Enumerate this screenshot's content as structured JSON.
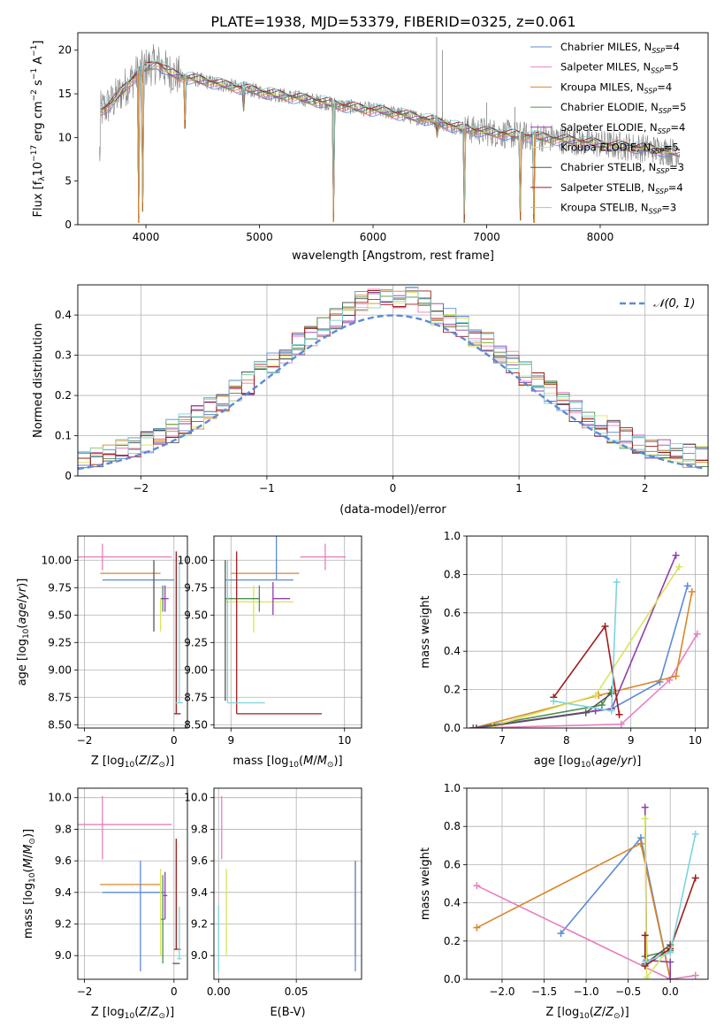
{
  "figure": {
    "title": "PLATE=1938, MJD=53379, FIBERID=0325, z=0.061"
  },
  "colors": {
    "Chabrier MILES": "#5b8bd8",
    "Salpeter MILES": "#e87fbf",
    "Kroupa MILES": "#d9862a",
    "Chabrier ELODIE": "#4f8f4f",
    "Salpeter ELODIE": "#8e3fae",
    "Kroupa ELODIE": "#d9e55a",
    "Chabrier STELIB": "#555555",
    "Salpeter STELIB": "#a01c1c",
    "Kroupa STELIB": "#7fd3dc",
    "data": "#808080"
  },
  "chart_data": [
    {
      "id": "spectrum",
      "type": "line",
      "title": "PLATE=1938, MJD=53379, FIBERID=0325, z=0.061",
      "xlabel": "wavelength [Angstrom, rest frame]",
      "ylabel": "Flux [f_λ 10^-17 erg cm^-2 s^-1 A^-1]",
      "xlim": [
        3400,
        8950
      ],
      "ylim": [
        0,
        22
      ],
      "xticks": [
        4000,
        5000,
        6000,
        7000,
        8000
      ],
      "yticks": [
        0,
        5,
        10,
        15,
        20
      ],
      "legend_position": "top-right",
      "legend": [
        {
          "label": "Chabrier MILES, N",
          "sub": "SSP",
          "n": "=4",
          "model": "Chabrier MILES"
        },
        {
          "label": "Salpeter MILES, N",
          "sub": "SSP",
          "n": "=5",
          "model": "Salpeter MILES"
        },
        {
          "label": "Kroupa MILES, N",
          "sub": "SSP",
          "n": "=4",
          "model": "Kroupa MILES"
        },
        {
          "label": "Chabrier ELODIE, N",
          "sub": "SSP",
          "n": "=5",
          "model": "Chabrier ELODIE"
        },
        {
          "label": "Salpeter ELODIE, N",
          "sub": "SSP",
          "n": "=4",
          "model": "Salpeter ELODIE"
        },
        {
          "label": "Kroupa ELODIE, N",
          "sub": "SSP",
          "n": "=5",
          "model": "Kroupa ELODIE"
        },
        {
          "label": "Chabrier STELIB, N",
          "sub": "SSP",
          "n": "=3",
          "model": "Chabrier STELIB"
        },
        {
          "label": "Salpeter STELIB, N",
          "sub": "SSP",
          "n": "=4",
          "model": "Salpeter STELIB"
        },
        {
          "label": "Kroupa STELIB, N",
          "sub": "SSP",
          "n": "=3",
          "model": "Kroupa STELIB"
        }
      ],
      "continuum": {
        "x": [
          3600,
          3700,
          3800,
          3900,
          4000,
          4100,
          4200,
          4300,
          4500,
          4700,
          4900,
          5100,
          5300,
          5500,
          5700,
          5900,
          6100,
          6300,
          6500,
          6700,
          6900,
          7100,
          7300,
          7500,
          7700,
          7900,
          8100,
          8300,
          8500,
          8700
        ],
        "y": [
          13,
          14,
          15.5,
          17,
          18,
          18.5,
          17.5,
          17,
          16.5,
          16,
          15.5,
          15,
          14.6,
          14.2,
          13.7,
          13.3,
          13,
          12.5,
          12,
          11.3,
          10.8,
          10.5,
          10.2,
          10,
          9.7,
          9.4,
          9.1,
          8.9,
          8.6,
          8.2
        ]
      },
      "absorption_spikes": [
        [
          3934,
          0.2
        ],
        [
          3969,
          1.5
        ],
        [
          4340,
          11
        ],
        [
          4861,
          13
        ],
        [
          5650,
          0.3
        ],
        [
          6800,
          0.2
        ],
        [
          7420,
          0.2
        ],
        [
          7300,
          0.5
        ],
        [
          6563,
          10
        ]
      ]
    },
    {
      "id": "residuals",
      "type": "histogram",
      "xlabel": "(data-model)/error",
      "ylabel": "Normed distribution",
      "xlim": [
        -2.5,
        2.5
      ],
      "ylim": [
        0,
        0.475
      ],
      "xticks": [
        -2,
        -1,
        0,
        1,
        2
      ],
      "yticks": [
        0,
        0.1,
        0.2,
        0.3,
        0.4
      ],
      "grid": true,
      "bin_width": 0.1,
      "reference_curve": {
        "name": "𝒩(0, 1)",
        "mean": 0,
        "sigma": 1,
        "color": "#5b8bd8"
      },
      "legend_position": "top-right"
    },
    {
      "id": "age-vs-z",
      "type": "errorbar",
      "xlabel": "Z [log10(Z/Z⊙)]",
      "ylabel": "age [log10(age/yr)]",
      "xlim": [
        -2.15,
        0.3
      ],
      "ylim": [
        8.47,
        10.22
      ],
      "xticks": [
        -2,
        0
      ],
      "yticks": [
        8.5,
        8.75,
        9.0,
        9.25,
        9.5,
        9.75,
        10.0
      ],
      "points": [
        {
          "model": "Salpeter MILES",
          "x": -1.6,
          "y": 10.03,
          "xerr": [
            0.55,
            1.55
          ],
          "yerr": [
            0.12,
            0.12
          ]
        },
        {
          "model": "Kroupa MILES",
          "x": -0.55,
          "y": 9.88,
          "xerr": [
            1.1,
            0.25
          ],
          "yerr": [
            0.0,
            0.0
          ]
        },
        {
          "model": "Chabrier MILES",
          "x": -0.75,
          "y": 9.82,
          "xerr": [
            0.85,
            0.75
          ],
          "yerr": [
            0.0,
            0.0
          ]
        },
        {
          "model": "Chabrier ELODIE",
          "x": -0.25,
          "y": 9.65,
          "xerr": [
            0.05,
            0.05
          ],
          "yerr": [
            0.12,
            0.12
          ]
        },
        {
          "model": "Salpeter ELODIE",
          "x": -0.2,
          "y": 9.65,
          "xerr": [
            0.08,
            0.08
          ],
          "yerr": [
            0.12,
            0.12
          ]
        },
        {
          "model": "Kroupa ELODIE",
          "x": -0.3,
          "y": 9.5,
          "xerr": [
            0.0,
            0.0
          ],
          "yerr": [
            0.15,
            0.15
          ]
        },
        {
          "model": "Salpeter STELIB",
          "x": 0.05,
          "y": 8.6,
          "xerr": [
            0.05,
            0.1
          ],
          "yerr": [
            0.0,
            1.48
          ]
        },
        {
          "model": "Kroupa STELIB",
          "x": 0.12,
          "y": 8.7,
          "xerr": [
            0.08,
            0.08
          ],
          "yerr": [
            0.0,
            1.3
          ]
        },
        {
          "model": "Chabrier STELIB",
          "x": -0.45,
          "y": 9.65,
          "xerr": [
            0.0,
            0.0
          ],
          "yerr": [
            0.3,
            0.35
          ]
        }
      ]
    },
    {
      "id": "age-vs-mass",
      "type": "errorbar",
      "xlabel": "mass [log10(M/M⊙)]",
      "ylabel": "",
      "xlim": [
        8.85,
        10.15
      ],
      "ylim": [
        8.47,
        10.22
      ],
      "xticks": [
        9,
        10
      ],
      "yticks": [
        8.5,
        8.75,
        9.0,
        9.25,
        9.5,
        9.75,
        10.0
      ],
      "points": [
        {
          "model": "Salpeter MILES",
          "x": 9.83,
          "y": 10.03,
          "xerr": [
            0.22,
            0.18
          ],
          "yerr": [
            0.12,
            0.12
          ]
        },
        {
          "model": "Kroupa MILES",
          "x": 9.45,
          "y": 9.88,
          "xerr": [
            0.45,
            0.15
          ],
          "yerr": [
            0.0,
            0.0
          ]
        },
        {
          "model": "Chabrier MILES",
          "x": 9.4,
          "y": 9.82,
          "xerr": [
            0.45,
            0.15
          ],
          "yerr": [
            0.0,
            1.2
          ]
        },
        {
          "model": "Kroupa ELODIE",
          "x": 9.2,
          "y": 9.62,
          "xerr": [
            0.25,
            0.35
          ],
          "yerr": [
            0.28,
            0.15
          ]
        },
        {
          "model": "Salpeter ELODIE",
          "x": 9.37,
          "y": 9.65,
          "xerr": [
            0.0,
            0.15
          ],
          "yerr": [
            0.15,
            0.15
          ]
        },
        {
          "model": "Chabrier ELODIE",
          "x": 9.25,
          "y": 9.65,
          "xerr": [
            0.3,
            0.0
          ],
          "yerr": [
            0.12,
            0.12
          ]
        },
        {
          "model": "Salpeter STELIB",
          "x": 9.05,
          "y": 8.6,
          "xerr": [
            0.0,
            0.75
          ],
          "yerr": [
            0.0,
            1.48
          ]
        },
        {
          "model": "Kroupa STELIB",
          "x": 8.97,
          "y": 8.7,
          "xerr": [
            0.0,
            0.33
          ],
          "yerr": [
            0.0,
            1.3
          ]
        },
        {
          "model": "Chabrier STELIB",
          "x": 8.95,
          "y": 8.72,
          "xerr": [
            0.0,
            0.0
          ],
          "yerr": [
            0.0,
            1.28
          ]
        }
      ]
    },
    {
      "id": "massweight-vs-age",
      "type": "line",
      "xlabel": "age [log10(age/yr)]",
      "ylabel": "mass weight",
      "xlim": [
        6.45,
        10.2
      ],
      "ylim": [
        0,
        1.0
      ],
      "xticks": [
        7,
        8,
        9,
        10
      ],
      "yticks": [
        0.0,
        0.2,
        0.4,
        0.6,
        0.8,
        1.0
      ],
      "series": [
        {
          "model": "Chabrier MILES",
          "x": [
            6.55,
            8.7,
            9.45,
            9.88
          ],
          "y": [
            0.0,
            0.1,
            0.24,
            0.74
          ]
        },
        {
          "model": "Salpeter MILES",
          "x": [
            6.55,
            8.85,
            9.6,
            10.03
          ],
          "y": [
            0.0,
            0.02,
            0.25,
            0.49
          ]
        },
        {
          "model": "Kroupa MILES",
          "x": [
            6.55,
            8.5,
            9.7,
            9.95
          ],
          "y": [
            0.0,
            0.17,
            0.27,
            0.71
          ]
        },
        {
          "model": "Chabrier ELODIE",
          "x": [
            6.55,
            8.55,
            8.7
          ],
          "y": [
            0.0,
            0.12,
            0.2
          ]
        },
        {
          "model": "Salpeter ELODIE",
          "x": [
            6.55,
            8.45,
            8.7,
            9.7
          ],
          "y": [
            0.0,
            0.09,
            0.1,
            0.9
          ]
        },
        {
          "model": "Kroupa ELODIE",
          "x": [
            6.85,
            8.45,
            9.75
          ],
          "y": [
            0.01,
            0.17,
            0.84
          ]
        },
        {
          "model": "Chabrier STELIB",
          "x": [
            6.6,
            8.3,
            8.7
          ],
          "y": [
            0.0,
            0.08,
            0.18
          ]
        },
        {
          "model": "Salpeter STELIB",
          "x": [
            7.8,
            8.6,
            8.82
          ],
          "y": [
            0.16,
            0.53,
            0.07
          ]
        },
        {
          "model": "Kroupa STELIB",
          "x": [
            7.8,
            8.7,
            8.78
          ],
          "y": [
            0.14,
            0.09,
            0.76
          ]
        }
      ]
    },
    {
      "id": "mass-vs-z",
      "type": "errorbar",
      "xlabel": "Z [log10(Z/Z⊙)]",
      "ylabel": "mass [log10(M/M⊙)]",
      "xlim": [
        -2.15,
        0.3
      ],
      "ylim": [
        8.85,
        10.06
      ],
      "xticks": [
        -2,
        0
      ],
      "yticks": [
        9.0,
        9.2,
        9.4,
        9.6,
        9.8,
        10.0
      ],
      "points": [
        {
          "model": "Salpeter MILES",
          "x": -1.6,
          "y": 9.83,
          "xerr": [
            0.55,
            1.55
          ],
          "yerr": [
            0.22,
            0.18
          ]
        },
        {
          "model": "Kroupa MILES",
          "x": -0.55,
          "y": 9.45,
          "xerr": [
            1.1,
            0.25
          ],
          "yerr": [
            0.0,
            0.0
          ]
        },
        {
          "model": "Chabrier MILES",
          "x": -0.75,
          "y": 9.4,
          "xerr": [
            0.85,
            0.55
          ],
          "yerr": [
            0.5,
            0.2
          ]
        },
        {
          "model": "Salpeter ELODIE",
          "x": -0.2,
          "y": 9.38,
          "xerr": [
            0.05,
            0.05
          ],
          "yerr": [
            0.15,
            0.15
          ]
        },
        {
          "model": "Chabrier ELODIE",
          "x": -0.25,
          "y": 9.23,
          "xerr": [
            0.05,
            0.05
          ],
          "yerr": [
            0.28,
            0.28
          ]
        },
        {
          "model": "Kroupa ELODIE",
          "x": -0.3,
          "y": 9.2,
          "xerr": [
            0.0,
            0.0
          ],
          "yerr": [
            0.2,
            0.35
          ]
        },
        {
          "model": "Salpeter STELIB",
          "x": 0.05,
          "y": 9.04,
          "xerr": [
            0.05,
            0.1
          ],
          "yerr": [
            0.0,
            0.7
          ]
        },
        {
          "model": "Kroupa STELIB",
          "x": 0.12,
          "y": 8.98,
          "xerr": [
            0.05,
            0.05
          ],
          "yerr": [
            0.0,
            0.33
          ]
        },
        {
          "model": "Chabrier STELIB",
          "x": 0.05,
          "y": 8.95,
          "xerr": [
            0.08,
            0.08
          ],
          "yerr": [
            0.0,
            0.0
          ]
        }
      ]
    },
    {
      "id": "mass-vs-ebv",
      "type": "errorbar",
      "xlabel": "E(B-V)",
      "ylabel": "",
      "xlim": [
        -0.003,
        0.092
      ],
      "ylim": [
        8.85,
        10.06
      ],
      "xticks": [
        0.0,
        0.05
      ],
      "xticklabels": [
        "0.00",
        "0.05"
      ],
      "yticks": [
        9.0,
        9.2,
        9.4,
        9.6,
        9.8,
        10.0
      ],
      "points": [
        {
          "model": "Salpeter MILES",
          "x": 0.002,
          "y": 9.83,
          "xerr": [
            0,
            0
          ],
          "yerr": [
            0.22,
            0.18
          ]
        },
        {
          "model": "Kroupa MILES",
          "x": 0.088,
          "y": 9.45,
          "xerr": [
            0,
            0
          ],
          "yerr": [
            0.45,
            0.15
          ]
        },
        {
          "model": "Chabrier MILES",
          "x": 0.088,
          "y": 9.4,
          "xerr": [
            0,
            0
          ],
          "yerr": [
            0.5,
            0.2
          ]
        },
        {
          "model": "Kroupa ELODIE",
          "x": 0.005,
          "y": 9.2,
          "xerr": [
            0,
            0
          ],
          "yerr": [
            0.2,
            0.35
          ]
        },
        {
          "model": "Kroupa STELIB",
          "x": 0.0,
          "y": 9.0,
          "xerr": [
            0,
            0
          ],
          "yerr": [
            0.1,
            0.32
          ]
        }
      ]
    },
    {
      "id": "massweight-vs-z",
      "type": "line",
      "xlabel": "Z [log10(Z/Z⊙)]",
      "ylabel": "mass weight",
      "xlim": [
        -2.42,
        0.45
      ],
      "ylim": [
        0,
        1.0
      ],
      "xticks": [
        -2.0,
        -1.5,
        -1.0,
        -0.5,
        0.0
      ],
      "xticklabels": [
        "−2.0",
        "−1.5",
        "−1.0",
        "−0.5",
        "0.0"
      ],
      "yticks": [
        0.0,
        0.2,
        0.4,
        0.6,
        0.8,
        1.0
      ],
      "series": [
        {
          "model": "Chabrier MILES",
          "x": [
            -1.3,
            -0.35,
            0.0
          ],
          "y": [
            0.24,
            0.74,
            0.0
          ]
        },
        {
          "model": "Salpeter MILES",
          "x": [
            -2.3,
            0.0,
            0.3
          ],
          "y": [
            0.49,
            0.0,
            0.02
          ]
        },
        {
          "model": "Kroupa MILES",
          "x": [
            -2.3,
            -0.35,
            0.0
          ],
          "y": [
            0.27,
            0.71,
            0.0
          ]
        },
        {
          "model": "Chabrier ELODIE",
          "x": [
            -0.3,
            0.0
          ],
          "y": [
            0.12,
            0.15
          ]
        },
        {
          "model": "Salpeter ELODIE",
          "x": [
            -0.3,
            -0.28,
            0.0,
            0.0
          ],
          "y": [
            0.9,
            0.1,
            0.09,
            0.0
          ]
        },
        {
          "model": "Kroupa ELODIE",
          "x": [
            -0.3,
            -0.28,
            0.0
          ],
          "y": [
            0.84,
            0.01,
            0.17
          ]
        },
        {
          "model": "Chabrier STELIB",
          "x": [
            -0.3,
            0.0
          ],
          "y": [
            0.08,
            0.18
          ]
        },
        {
          "model": "Salpeter STELIB",
          "x": [
            -0.3,
            -0.3,
            0.0,
            0.3
          ],
          "y": [
            0.23,
            0.07,
            0.16,
            0.53
          ]
        },
        {
          "model": "Kroupa STELIB",
          "x": [
            -0.3,
            0.0,
            0.3
          ],
          "y": [
            0.09,
            0.14,
            0.76
          ]
        }
      ]
    }
  ]
}
